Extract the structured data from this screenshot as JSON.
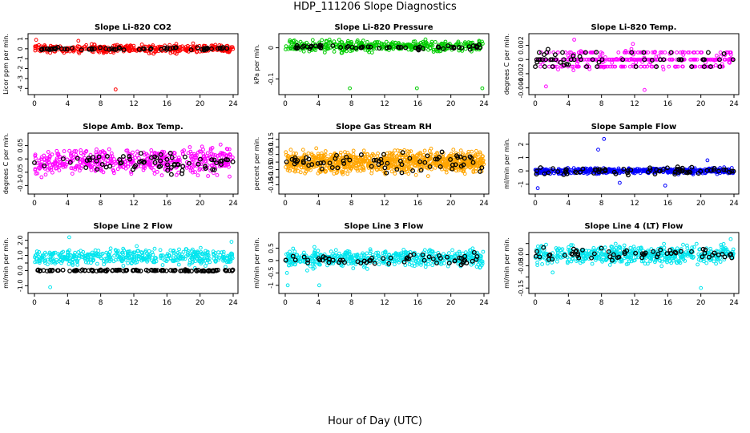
{
  "page": {
    "title": "HDP_111206  Slope Diagnostics",
    "xlabel": "Hour of Day (UTC)"
  },
  "colors": {
    "red": "#ff0000",
    "green": "#00cc00",
    "magenta": "#ff00ff",
    "orange": "#ffa500",
    "blue": "#0000ff",
    "cyan": "#00e5ee",
    "black": "#000000"
  },
  "chart_data": [
    {
      "type": "scatter",
      "title": "Slope Li-820 CO2",
      "ylabel": "Licor ppm per min.",
      "xlim": [
        0,
        24
      ],
      "ylim": [
        -4.3,
        1.2
      ],
      "yticks": [
        -4,
        -3,
        -2,
        -1,
        0,
        1
      ],
      "xticks": [
        0,
        4,
        8,
        12,
        16,
        20,
        24
      ],
      "color_key": "red",
      "series": [
        {
          "name": "samples",
          "color_key": "red",
          "center": 0.0,
          "spread": 0.35,
          "count": 400,
          "x_range": [
            0,
            24
          ],
          "extra_points": [
            [
              9.8,
              -4.1
            ],
            [
              0.2,
              0.9
            ],
            [
              5.3,
              0.8
            ]
          ]
        },
        {
          "name": "averages",
          "color_key": "black",
          "center": 0.0,
          "spread": 0.15,
          "count": 60,
          "x_range": [
            0,
            24
          ]
        }
      ]
    },
    {
      "type": "scatter",
      "title": "Slope Li-820 Pressure",
      "ylabel": "kPa per min.",
      "xlim": [
        0,
        24
      ],
      "ylim": [
        -0.14,
        0.035
      ],
      "yticks": [
        -0.1,
        0.0
      ],
      "xticks": [
        0,
        4,
        8,
        12,
        16,
        20,
        24
      ],
      "color_key": "green",
      "series": [
        {
          "name": "samples",
          "color_key": "green",
          "center": 0.005,
          "spread": 0.015,
          "count": 400,
          "x_range": [
            0,
            24
          ],
          "extra_points": [
            [
              7.8,
              -0.13
            ],
            [
              15.9,
              -0.13
            ],
            [
              23.8,
              -0.13
            ]
          ]
        },
        {
          "name": "averages",
          "color_key": "black",
          "center": 0.002,
          "spread": 0.006,
          "count": 60,
          "x_range": [
            0,
            24
          ]
        }
      ]
    },
    {
      "type": "scatter",
      "title": "Slope Li-820 Temp.",
      "ylabel": "degrees C per min.",
      "xlim": [
        0,
        24
      ],
      "ylim": [
        -0.0045,
        0.0032
      ],
      "yticks": [
        -0.004,
        -0.002,
        0.0,
        0.002
      ],
      "xticks": [
        0,
        4,
        8,
        12,
        16,
        20,
        24
      ],
      "color_key": "magenta",
      "levels": [
        -0.001,
        0.0,
        0.001
      ],
      "series": [
        {
          "name": "samples",
          "color_key": "magenta",
          "center": 0.0,
          "spread": 0.0012,
          "count": 380,
          "x_range": [
            0,
            24
          ],
          "quantized": true,
          "extra_points": [
            [
              4.7,
              0.0028
            ],
            [
              1.3,
              -0.0038
            ],
            [
              13.2,
              -0.0043
            ],
            [
              11.8,
              0.0022
            ]
          ]
        },
        {
          "name": "averages",
          "color_key": "black",
          "center": 0.0,
          "spread": 0.001,
          "count": 60,
          "x_range": [
            0,
            24
          ],
          "quantized": true
        }
      ]
    },
    {
      "type": "scatter",
      "title": "Slope Amb. Box Temp.",
      "ylabel": "degrees C per min.",
      "xlim": [
        0,
        24
      ],
      "ylim": [
        -0.12,
        0.085
      ],
      "yticks": [
        -0.1,
        -0.05,
        0.0,
        0.05
      ],
      "xticks": [
        0,
        4,
        8,
        12,
        16,
        20,
        24
      ],
      "color_key": "magenta",
      "series": [
        {
          "name": "samples",
          "color_key": "magenta",
          "center": -0.01,
          "spread": 0.04,
          "count": 500,
          "x_range": [
            0,
            24
          ]
        },
        {
          "name": "averages",
          "color_key": "black",
          "center": -0.01,
          "spread": 0.03,
          "count": 70,
          "x_range": [
            0,
            24
          ]
        }
      ]
    },
    {
      "type": "scatter",
      "title": "Slope Gas Stream RH",
      "ylabel": "percent per min.",
      "xlim": [
        0,
        24
      ],
      "ylim": [
        -0.19,
        0.17
      ],
      "yticks": [
        -0.15,
        -0.1,
        -0.05,
        0.0,
        0.05,
        0.1,
        0.15
      ],
      "xticks": [
        0,
        4,
        8,
        12,
        16,
        20,
        24
      ],
      "color_key": "orange",
      "series": [
        {
          "name": "samples",
          "color_key": "orange",
          "center": 0.0,
          "spread": 0.06,
          "count": 900,
          "x_range": [
            0,
            24
          ]
        },
        {
          "name": "averages",
          "color_key": "black",
          "center": 0.0,
          "spread": 0.06,
          "count": 70,
          "x_range": [
            0,
            24
          ]
        }
      ]
    },
    {
      "type": "scatter",
      "title": "Slope Sample Flow",
      "ylabel": "ml/min per min.",
      "xlim": [
        0,
        24
      ],
      "ylim": [
        -1.5,
        2.6
      ],
      "yticks": [
        -1,
        0,
        1,
        2
      ],
      "xticks": [
        0,
        4,
        8,
        12,
        16,
        20,
        24
      ],
      "color_key": "blue",
      "series": [
        {
          "name": "samples",
          "color_key": "blue",
          "center": 0.0,
          "spread": 0.18,
          "count": 500,
          "x_range": [
            0,
            24
          ],
          "extra_points": [
            [
              8.3,
              2.4
            ],
            [
              7.6,
              1.6
            ],
            [
              0.3,
              -1.3
            ],
            [
              15.7,
              -1.1
            ],
            [
              20.8,
              0.8
            ],
            [
              10.2,
              -0.9
            ]
          ]
        },
        {
          "name": "averages",
          "color_key": "black",
          "center": 0.0,
          "spread": 0.25,
          "count": 70,
          "x_range": [
            0,
            24
          ]
        }
      ]
    },
    {
      "type": "scatter",
      "title": "Slope Line 2 Flow",
      "ylabel": "ml/min per min.",
      "xlim": [
        0,
        24
      ],
      "ylim": [
        -1.3,
        2.3
      ],
      "yticks": [
        -1.0,
        0.0,
        0.5,
        1.0,
        1.5,
        2.0
      ],
      "ytick_labels": [
        "-1.0",
        "0.0",
        "1.0",
        "2.0"
      ],
      "xticks": [
        0,
        4,
        8,
        12,
        16,
        20,
        24
      ],
      "color_key": "cyan",
      "series": [
        {
          "name": "samples",
          "color_key": "cyan",
          "center": 0.9,
          "spread": 0.45,
          "count": 450,
          "x_range": [
            0,
            24
          ],
          "extra_points": [
            [
              4.2,
              2.2
            ],
            [
              1.9,
              -1.1
            ],
            [
              23.8,
              1.9
            ]
          ]
        },
        {
          "name": "averages",
          "color_key": "black",
          "center": 0.0,
          "spread": 0.04,
          "count": 110,
          "x_range": [
            0,
            24
          ]
        }
      ]
    },
    {
      "type": "scatter",
      "title": "Slope Line 3 Flow",
      "ylabel": "ml/min per min.",
      "xlim": [
        0,
        24
      ],
      "ylim": [
        -1.2,
        1.0
      ],
      "yticks": [
        -1.0,
        -0.5,
        0.0,
        0.5
      ],
      "xticks": [
        0,
        4,
        8,
        12,
        16,
        20,
        24
      ],
      "color_key": "cyan",
      "series": [
        {
          "name": "samples",
          "color_key": "cyan",
          "center": 0.1,
          "spread": 0.3,
          "count": 500,
          "x_range": [
            0,
            24
          ],
          "extra_points": [
            [
              0.3,
              -1.0
            ],
            [
              4.1,
              -1.0
            ],
            [
              0.2,
              -0.5
            ]
          ]
        },
        {
          "name": "averages",
          "color_key": "black",
          "center": 0.05,
          "spread": 0.2,
          "count": 60,
          "x_range": [
            0,
            24
          ]
        }
      ]
    },
    {
      "type": "scatter",
      "title": "Slope Line 4 (LT) Flow",
      "ylabel": "ml/min per min.",
      "xlim": [
        0,
        24
      ],
      "ylim": [
        -0.16,
        0.085
      ],
      "yticks": [
        -0.15,
        -0.1,
        -0.05,
        0.0,
        0.05
      ],
      "ytick_labels": [
        "-0.15",
        "-0.05",
        "0.00"
      ],
      "xticks": [
        0,
        4,
        8,
        12,
        16,
        20,
        24
      ],
      "color_key": "cyan",
      "series": [
        {
          "name": "samples",
          "color_key": "cyan",
          "center": 0.0,
          "spread": 0.035,
          "count": 500,
          "x_range": [
            0,
            24
          ],
          "extra_points": [
            [
              20.0,
              -0.15
            ],
            [
              2.1,
              -0.08
            ],
            [
              23.6,
              0.07
            ]
          ]
        },
        {
          "name": "averages",
          "color_key": "black",
          "center": 0.0,
          "spread": 0.025,
          "count": 60,
          "x_range": [
            0,
            24
          ]
        }
      ]
    }
  ]
}
